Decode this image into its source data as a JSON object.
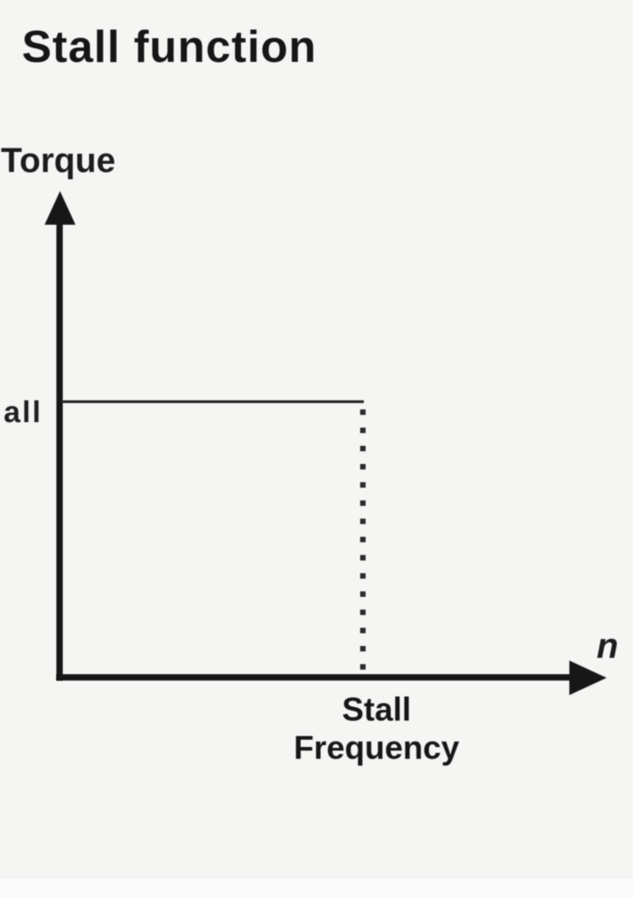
{
  "figure": {
    "title": "Stall function",
    "y_axis": {
      "label": "Torque"
    },
    "x_axis": {
      "label": "n",
      "tick_label_line1": "Stall",
      "tick_label_line2": "Frequency"
    },
    "stall_torque_tick_label": "all",
    "colors": {
      "ink": "#1c1c1c",
      "background": "#f5f5f4"
    }
  },
  "chart_data": {
    "type": "line",
    "title": "Stall function",
    "xlabel": "n",
    "ylabel": "Torque",
    "x_tick_labels": [
      "Stall Frequency"
    ],
    "y_tick_labels": [
      "all"
    ],
    "grid": false,
    "legend": false,
    "axis_style": "thick-black-arrows-from-origin",
    "series": [
      {
        "name": "stall-torque-level",
        "style": "solid-thin",
        "x_norm": [
          0.0,
          0.585
        ],
        "y_norm": [
          0.6,
          0.6
        ],
        "note": "constant torque at stall level from n=0 up to the stall frequency"
      },
      {
        "name": "stall-frequency-drop-marker",
        "style": "dotted-vertical",
        "x_norm": [
          0.585,
          0.585
        ],
        "y_norm": [
          0.6,
          0.0
        ],
        "note": "dotted vertical marker from the stall torque level down to the n-axis at the stall frequency"
      }
    ]
  }
}
